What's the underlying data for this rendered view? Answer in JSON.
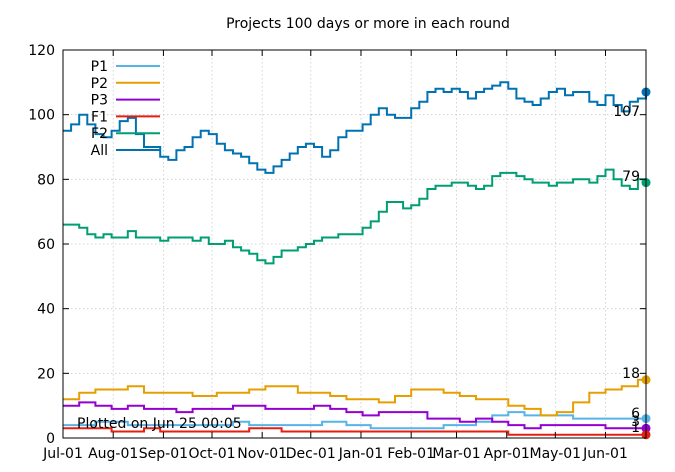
{
  "chart_data": {
    "type": "line",
    "title": "Projects 100 days or more in each round",
    "xlabel": "",
    "ylabel": "",
    "ylim": [
      0,
      120
    ],
    "yticks": [
      0,
      20,
      40,
      60,
      80,
      100,
      120
    ],
    "xlim": [
      0,
      360
    ],
    "xtick_labels": [
      "Jul-01",
      "Aug-01",
      "Sep-01",
      "Oct-01",
      "Nov-01",
      "Dec-01",
      "Jan-01",
      "Feb-01",
      "Mar-01",
      "Apr-01",
      "May-01",
      "Jun-01"
    ],
    "xtick_values": [
      0,
      31,
      62,
      92,
      123,
      153,
      184,
      215,
      243,
      274,
      304,
      335
    ],
    "grid": true,
    "legend_position": "top-left",
    "footnote": "Plotted on Jun 25 00:05",
    "series": [
      {
        "name": "P1",
        "color": "#56b4e9",
        "end_label": "6",
        "points": [
          [
            0,
            4
          ],
          [
            20,
            5
          ],
          [
            40,
            4
          ],
          [
            60,
            4
          ],
          [
            80,
            4
          ],
          [
            95,
            4
          ],
          [
            105,
            5
          ],
          [
            115,
            4
          ],
          [
            125,
            4
          ],
          [
            135,
            4
          ],
          [
            145,
            4
          ],
          [
            160,
            5
          ],
          [
            175,
            4
          ],
          [
            190,
            3
          ],
          [
            210,
            3
          ],
          [
            225,
            3
          ],
          [
            235,
            4
          ],
          [
            245,
            4
          ],
          [
            255,
            5
          ],
          [
            265,
            7
          ],
          [
            275,
            8
          ],
          [
            285,
            7
          ],
          [
            300,
            7
          ],
          [
            315,
            6
          ],
          [
            325,
            6
          ],
          [
            335,
            6
          ],
          [
            345,
            6
          ],
          [
            355,
            6
          ],
          [
            360,
            6
          ]
        ]
      },
      {
        "name": "P2",
        "color": "#e69f00",
        "end_label": "18",
        "points": [
          [
            0,
            12
          ],
          [
            10,
            14
          ],
          [
            20,
            15
          ],
          [
            30,
            15
          ],
          [
            40,
            16
          ],
          [
            50,
            14
          ],
          [
            60,
            14
          ],
          [
            70,
            14
          ],
          [
            80,
            13
          ],
          [
            95,
            14
          ],
          [
            105,
            14
          ],
          [
            115,
            15
          ],
          [
            125,
            16
          ],
          [
            135,
            16
          ],
          [
            145,
            14
          ],
          [
            155,
            14
          ],
          [
            165,
            13
          ],
          [
            175,
            12
          ],
          [
            185,
            12
          ],
          [
            195,
            11
          ],
          [
            205,
            13
          ],
          [
            215,
            15
          ],
          [
            225,
            15
          ],
          [
            235,
            14
          ],
          [
            245,
            13
          ],
          [
            255,
            12
          ],
          [
            265,
            12
          ],
          [
            275,
            10
          ],
          [
            285,
            9
          ],
          [
            295,
            7
          ],
          [
            305,
            8
          ],
          [
            315,
            11
          ],
          [
            325,
            14
          ],
          [
            335,
            15
          ],
          [
            345,
            16
          ],
          [
            355,
            18
          ],
          [
            360,
            18
          ]
        ]
      },
      {
        "name": "P3",
        "color": "#9400d3",
        "end_label": "3",
        "points": [
          [
            0,
            10
          ],
          [
            10,
            11
          ],
          [
            20,
            10
          ],
          [
            30,
            9
          ],
          [
            40,
            10
          ],
          [
            50,
            9
          ],
          [
            60,
            9
          ],
          [
            70,
            8
          ],
          [
            80,
            9
          ],
          [
            95,
            9
          ],
          [
            105,
            10
          ],
          [
            115,
            10
          ],
          [
            125,
            9
          ],
          [
            135,
            9
          ],
          [
            145,
            9
          ],
          [
            155,
            10
          ],
          [
            165,
            9
          ],
          [
            175,
            8
          ],
          [
            185,
            7
          ],
          [
            195,
            8
          ],
          [
            205,
            8
          ],
          [
            215,
            8
          ],
          [
            225,
            6
          ],
          [
            235,
            6
          ],
          [
            245,
            5
          ],
          [
            255,
            6
          ],
          [
            265,
            5
          ],
          [
            275,
            4
          ],
          [
            285,
            3
          ],
          [
            295,
            4
          ],
          [
            305,
            4
          ],
          [
            315,
            4
          ],
          [
            325,
            4
          ],
          [
            335,
            3
          ],
          [
            345,
            3
          ],
          [
            355,
            3
          ],
          [
            360,
            3
          ]
        ]
      },
      {
        "name": "F1",
        "color": "#e51e10",
        "end_label": "1",
        "points": [
          [
            0,
            3
          ],
          [
            10,
            3
          ],
          [
            20,
            3
          ],
          [
            30,
            2
          ],
          [
            40,
            2
          ],
          [
            50,
            3
          ],
          [
            60,
            2
          ],
          [
            70,
            2
          ],
          [
            80,
            2
          ],
          [
            95,
            2
          ],
          [
            105,
            2
          ],
          [
            115,
            3
          ],
          [
            125,
            3
          ],
          [
            135,
            2
          ],
          [
            145,
            2
          ],
          [
            155,
            2
          ],
          [
            165,
            2
          ],
          [
            175,
            2
          ],
          [
            185,
            2
          ],
          [
            195,
            2
          ],
          [
            205,
            2
          ],
          [
            215,
            2
          ],
          [
            225,
            2
          ],
          [
            235,
            2
          ],
          [
            245,
            2
          ],
          [
            255,
            2
          ],
          [
            265,
            2
          ],
          [
            275,
            1
          ],
          [
            285,
            1
          ],
          [
            295,
            1
          ],
          [
            305,
            1
          ],
          [
            315,
            1
          ],
          [
            325,
            1
          ],
          [
            335,
            1
          ],
          [
            345,
            1
          ],
          [
            355,
            1
          ],
          [
            360,
            1
          ]
        ]
      },
      {
        "name": "F2",
        "color": "#009e73",
        "end_label": "79",
        "points": [
          [
            0,
            66
          ],
          [
            5,
            66
          ],
          [
            10,
            65
          ],
          [
            15,
            63
          ],
          [
            20,
            62
          ],
          [
            25,
            63
          ],
          [
            30,
            62
          ],
          [
            35,
            62
          ],
          [
            40,
            64
          ],
          [
            45,
            62
          ],
          [
            50,
            62
          ],
          [
            55,
            62
          ],
          [
            60,
            61
          ],
          [
            65,
            62
          ],
          [
            70,
            62
          ],
          [
            75,
            62
          ],
          [
            80,
            61
          ],
          [
            85,
            62
          ],
          [
            90,
            60
          ],
          [
            95,
            60
          ],
          [
            100,
            61
          ],
          [
            105,
            59
          ],
          [
            110,
            58
          ],
          [
            115,
            57
          ],
          [
            120,
            55
          ],
          [
            125,
            54
          ],
          [
            130,
            56
          ],
          [
            135,
            58
          ],
          [
            140,
            58
          ],
          [
            145,
            59
          ],
          [
            150,
            60
          ],
          [
            155,
            61
          ],
          [
            160,
            62
          ],
          [
            165,
            62
          ],
          [
            170,
            63
          ],
          [
            175,
            63
          ],
          [
            180,
            63
          ],
          [
            185,
            65
          ],
          [
            190,
            67
          ],
          [
            195,
            70
          ],
          [
            200,
            73
          ],
          [
            205,
            73
          ],
          [
            210,
            71
          ],
          [
            215,
            72
          ],
          [
            220,
            74
          ],
          [
            225,
            77
          ],
          [
            230,
            78
          ],
          [
            235,
            78
          ],
          [
            240,
            79
          ],
          [
            245,
            79
          ],
          [
            250,
            78
          ],
          [
            255,
            77
          ],
          [
            260,
            78
          ],
          [
            265,
            81
          ],
          [
            270,
            82
          ],
          [
            275,
            82
          ],
          [
            280,
            81
          ],
          [
            285,
            80
          ],
          [
            290,
            79
          ],
          [
            295,
            79
          ],
          [
            300,
            78
          ],
          [
            305,
            79
          ],
          [
            310,
            79
          ],
          [
            315,
            80
          ],
          [
            320,
            80
          ],
          [
            325,
            79
          ],
          [
            330,
            81
          ],
          [
            335,
            83
          ],
          [
            340,
            80
          ],
          [
            345,
            78
          ],
          [
            350,
            77
          ],
          [
            355,
            80
          ],
          [
            360,
            79
          ]
        ]
      },
      {
        "name": "All",
        "color": "#0072b2",
        "end_label": "107",
        "points": [
          [
            0,
            95
          ],
          [
            5,
            97
          ],
          [
            10,
            100
          ],
          [
            15,
            97
          ],
          [
            20,
            94
          ],
          [
            25,
            93
          ],
          [
            30,
            95
          ],
          [
            35,
            98
          ],
          [
            40,
            99
          ],
          [
            45,
            94
          ],
          [
            50,
            90
          ],
          [
            55,
            90
          ],
          [
            60,
            87
          ],
          [
            65,
            86
          ],
          [
            70,
            89
          ],
          [
            75,
            90
          ],
          [
            80,
            93
          ],
          [
            85,
            95
          ],
          [
            90,
            94
          ],
          [
            95,
            91
          ],
          [
            100,
            89
          ],
          [
            105,
            88
          ],
          [
            110,
            87
          ],
          [
            115,
            85
          ],
          [
            120,
            83
          ],
          [
            125,
            82
          ],
          [
            130,
            84
          ],
          [
            135,
            86
          ],
          [
            140,
            88
          ],
          [
            145,
            90
          ],
          [
            150,
            91
          ],
          [
            155,
            90
          ],
          [
            160,
            87
          ],
          [
            165,
            89
          ],
          [
            170,
            93
          ],
          [
            175,
            95
          ],
          [
            180,
            95
          ],
          [
            185,
            97
          ],
          [
            190,
            100
          ],
          [
            195,
            102
          ],
          [
            200,
            100
          ],
          [
            205,
            99
          ],
          [
            210,
            99
          ],
          [
            215,
            102
          ],
          [
            220,
            104
          ],
          [
            225,
            107
          ],
          [
            230,
            108
          ],
          [
            235,
            107
          ],
          [
            240,
            108
          ],
          [
            245,
            107
          ],
          [
            250,
            105
          ],
          [
            255,
            107
          ],
          [
            260,
            108
          ],
          [
            265,
            109
          ],
          [
            270,
            110
          ],
          [
            275,
            108
          ],
          [
            280,
            105
          ],
          [
            285,
            104
          ],
          [
            290,
            103
          ],
          [
            295,
            105
          ],
          [
            300,
            107
          ],
          [
            305,
            108
          ],
          [
            310,
            106
          ],
          [
            315,
            107
          ],
          [
            320,
            107
          ],
          [
            325,
            104
          ],
          [
            330,
            103
          ],
          [
            335,
            106
          ],
          [
            340,
            103
          ],
          [
            345,
            101
          ],
          [
            350,
            104
          ],
          [
            355,
            105
          ],
          [
            360,
            107
          ]
        ]
      }
    ]
  }
}
